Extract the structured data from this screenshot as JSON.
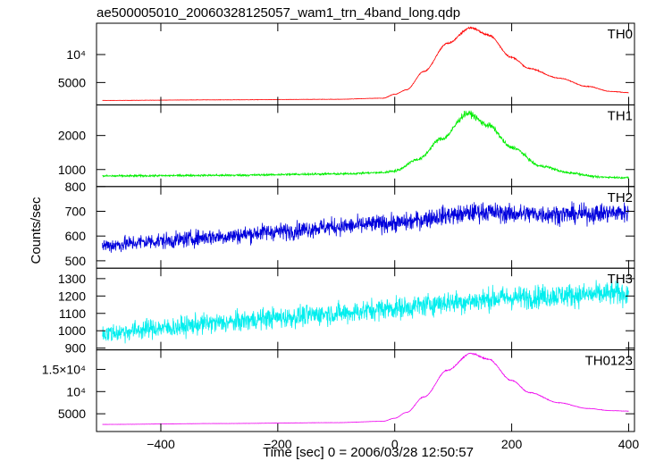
{
  "title": "ae500005010_20060328125057_wam1_trn_4band_long.qdp",
  "chart_data": {
    "type": "line",
    "xlabel": "Time [sec] 0 = 2006/03/28 12:50:57",
    "ylabel": "Counts/sec",
    "xlim": [
      -510,
      410
    ],
    "xticks": [
      {
        "value": -400,
        "label": "−400"
      },
      {
        "value": -200,
        "label": "−200"
      },
      {
        "value": 0,
        "label": "0"
      },
      {
        "value": 200,
        "label": "200"
      },
      {
        "value": 400,
        "label": "400"
      }
    ],
    "panels": [
      {
        "name": "TH0",
        "color": "#ff0000",
        "ylim": [
          1000,
          15600
        ],
        "yticks": [
          {
            "value": 5000,
            "label": "5000"
          },
          {
            "value": 10000,
            "label": "10⁴"
          }
        ],
        "noise": 0.01,
        "points": [
          [
            -500,
            1800
          ],
          [
            -300,
            1900
          ],
          [
            -100,
            2000
          ],
          [
            -20,
            2200
          ],
          [
            0,
            2900
          ],
          [
            20,
            3700
          ],
          [
            50,
            7000
          ],
          [
            90,
            12000
          ],
          [
            130,
            14800
          ],
          [
            160,
            13500
          ],
          [
            200,
            9500
          ],
          [
            230,
            7500
          ],
          [
            280,
            5800
          ],
          [
            330,
            4300
          ],
          [
            370,
            3400
          ],
          [
            400,
            3200
          ]
        ]
      },
      {
        "name": "TH1",
        "color": "#00ee00",
        "ylim": [
          500,
          2900
        ],
        "yticks": [
          {
            "value": 1000,
            "label": "1000"
          },
          {
            "value": 2000,
            "label": "2000"
          }
        ],
        "noise": 0.025,
        "points": [
          [
            -500,
            810
          ],
          [
            -300,
            830
          ],
          [
            -100,
            870
          ],
          [
            -20,
            910
          ],
          [
            0,
            960
          ],
          [
            40,
            1300
          ],
          [
            80,
            1900
          ],
          [
            125,
            2650
          ],
          [
            160,
            2300
          ],
          [
            200,
            1650
          ],
          [
            250,
            1100
          ],
          [
            300,
            900
          ],
          [
            350,
            780
          ],
          [
            400,
            760
          ]
        ]
      },
      {
        "name": "TH2",
        "color": "#0000dd",
        "ylim": [
          470,
          800
        ],
        "yticks": [
          {
            "value": 500,
            "label": "500"
          },
          {
            "value": 600,
            "label": "600"
          },
          {
            "value": 700,
            "label": "700"
          },
          {
            "value": 800,
            "label": "800"
          }
        ],
        "noise": 0.04,
        "points": [
          [
            -500,
            562
          ],
          [
            -400,
            580
          ],
          [
            -300,
            598
          ],
          [
            -200,
            618
          ],
          [
            -100,
            638
          ],
          [
            0,
            652
          ],
          [
            100,
            685
          ],
          [
            150,
            698
          ],
          [
            200,
            690
          ],
          [
            300,
            688
          ],
          [
            400,
            695
          ]
        ]
      },
      {
        "name": "TH3",
        "color": "#00eeee",
        "ylim": [
          890,
          1360
        ],
        "yticks": [
          {
            "value": 900,
            "label": "900"
          },
          {
            "value": 1000,
            "label": "1000"
          },
          {
            "value": 1100,
            "label": "1100"
          },
          {
            "value": 1200,
            "label": "1200"
          },
          {
            "value": 1300,
            "label": "1300"
          }
        ],
        "noise": 0.04,
        "points": [
          [
            -500,
            985
          ],
          [
            -400,
            1015
          ],
          [
            -300,
            1045
          ],
          [
            -200,
            1075
          ],
          [
            -100,
            1100
          ],
          [
            0,
            1130
          ],
          [
            100,
            1165
          ],
          [
            200,
            1190
          ],
          [
            300,
            1205
          ],
          [
            400,
            1215
          ]
        ]
      },
      {
        "name": "TH0123",
        "color": "#ee00ee",
        "ylim": [
          1000,
          19400
        ],
        "yticks": [
          {
            "value": 5000,
            "label": "5000"
          },
          {
            "value": 10000,
            "label": "10⁴"
          },
          {
            "value": 15000,
            "label": "1.5×10⁴"
          }
        ],
        "noise": 0.006,
        "points": [
          [
            -500,
            2600
          ],
          [
            -300,
            2800
          ],
          [
            -100,
            3000
          ],
          [
            -20,
            3300
          ],
          [
            0,
            4000
          ],
          [
            20,
            5300
          ],
          [
            50,
            8800
          ],
          [
            90,
            14800
          ],
          [
            130,
            18600
          ],
          [
            160,
            17300
          ],
          [
            200,
            12500
          ],
          [
            230,
            9800
          ],
          [
            280,
            7500
          ],
          [
            330,
            6200
          ],
          [
            370,
            5700
          ],
          [
            400,
            5600
          ]
        ]
      }
    ]
  }
}
